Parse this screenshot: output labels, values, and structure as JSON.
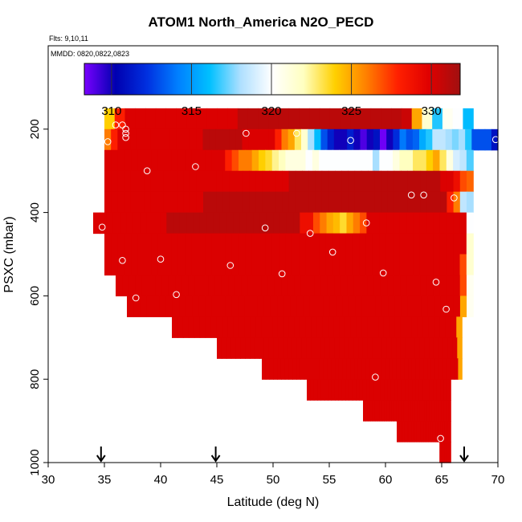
{
  "chart_data": {
    "type": "heatmap",
    "title": "ATOM1 North_America N2O_PECD",
    "annotations": [
      "Flts: 9,10,11",
      "MMDD: 0820,0822,0823"
    ],
    "xlabel": "Latitude (deg N)",
    "ylabel": "PSXC (mbar)",
    "xlim": [
      30,
      70
    ],
    "ylim": [
      1000,
      0
    ],
    "x_ticks": [
      "30",
      "35",
      "40",
      "45",
      "50",
      "55",
      "60",
      "65",
      "70"
    ],
    "y_ticks": [
      "200",
      "400",
      "600",
      "800",
      "1000"
    ],
    "colorbar": {
      "range": [
        308.3,
        331.8
      ],
      "ticks": [
        "310",
        "315",
        "320",
        "325",
        "330"
      ],
      "stops": [
        "#7a00ff",
        "#0000b0",
        "#0030e0",
        "#0080ff",
        "#00c0ff",
        "#b0e0ff",
        "#ffffff",
        "#ffffc0",
        "#ffd000",
        "#ff8000",
        "#ff2000",
        "#e00000",
        "#a01010"
      ]
    },
    "cell_lat_width": 1,
    "cell_pressure_height": 50,
    "rows": [
      {
        "p": 175,
        "lat_start": 35,
        "values": [
          324,
          328,
          330,
          330,
          330,
          330,
          330,
          330,
          330,
          330,
          330,
          330,
          330,
          331,
          331,
          331,
          331,
          331,
          331,
          331,
          331,
          331,
          331,
          331,
          331,
          331,
          331,
          331,
          331,
          330.5,
          325,
          321.5,
          316.5,
          320.5,
          320,
          316
        ]
      },
      {
        "p": 225,
        "lat_start": 35,
        "values": [
          326,
          328,
          330,
          330,
          330,
          330,
          330,
          330,
          330,
          330,
          330,
          330,
          330,
          330,
          330,
          331,
          331,
          331,
          331,
          331,
          331,
          330,
          330,
          330,
          330,
          330,
          328,
          326,
          325,
          323,
          321.5,
          318,
          316,
          313,
          311.5,
          310,
          310,
          311.5,
          310,
          309,
          310,
          311,
          308.5,
          310,
          312,
          314,
          313,
          313.5,
          315.5,
          316.5,
          318.5,
          318.5,
          318,
          317.5,
          318,
          316.5,
          313,
          313,
          313,
          311
        ]
      },
      {
        "p": 275,
        "lat_start": 35,
        "values": [
          330,
          330,
          330,
          330,
          330,
          330,
          330,
          330,
          330,
          330,
          330,
          330,
          330,
          330,
          330,
          330,
          330,
          330,
          328,
          327,
          326,
          326,
          325,
          324,
          323.5,
          322.5,
          322,
          321,
          321,
          321,
          320,
          321,
          320,
          320,
          320,
          320,
          320,
          320,
          320,
          320,
          318,
          320,
          320,
          321,
          322,
          322,
          323,
          323,
          324,
          325,
          323,
          321,
          319,
          318.5,
          317
        ]
      },
      {
        "p": 325,
        "lat_start": 35,
        "values": [
          330,
          330,
          330,
          330,
          330,
          330,
          330,
          330,
          330,
          330,
          330,
          330,
          330,
          330,
          330,
          330,
          330,
          330,
          330,
          330,
          330,
          330,
          330,
          330,
          330,
          330,
          330,
          330,
          331,
          331,
          331,
          331,
          331,
          331,
          331,
          331,
          331,
          331,
          331,
          331,
          331,
          331,
          331,
          331,
          331,
          331,
          331,
          331,
          331,
          331,
          331,
          330,
          330,
          329,
          327,
          326.5
        ]
      },
      {
        "p": 375,
        "lat_start": 35,
        "values": [
          330,
          330,
          330,
          330,
          330,
          330,
          330,
          330,
          330,
          330,
          330,
          330,
          330,
          330,
          330,
          331,
          331,
          331,
          331,
          331,
          331,
          331,
          331,
          331,
          331,
          331,
          331,
          331,
          331,
          331,
          331,
          331,
          331,
          331,
          331,
          331,
          331,
          331,
          331,
          331,
          331,
          331,
          331,
          331,
          331,
          331,
          331,
          331,
          331,
          331,
          331,
          331,
          328,
          326,
          318.5,
          318
        ]
      },
      {
        "p": 425,
        "lat_start": 34,
        "values": [
          330,
          330,
          330,
          330,
          330,
          330,
          330,
          330,
          330,
          330,
          330,
          331,
          331,
          331,
          331,
          331,
          331,
          331,
          331,
          331,
          331,
          331,
          331,
          331,
          331,
          331,
          331,
          331,
          331,
          331,
          331,
          329,
          329,
          327,
          326,
          325,
          324.5,
          323.5,
          325,
          326,
          327,
          330,
          330,
          330,
          330,
          330,
          330,
          330,
          330,
          330,
          330,
          330,
          330,
          330,
          330,
          330,
          320
        ]
      },
      {
        "p": 475,
        "lat_start": 35,
        "values": [
          330,
          330,
          330,
          330,
          330,
          330,
          330,
          330,
          330,
          330,
          330,
          330,
          330,
          330,
          330,
          330,
          330,
          330,
          330,
          330,
          330,
          330,
          330,
          330,
          330,
          330,
          330,
          330,
          330,
          330,
          330,
          330,
          330,
          330,
          330,
          330,
          330,
          330,
          330,
          330,
          330,
          330,
          330,
          330,
          330,
          330,
          330,
          330,
          330,
          330,
          330,
          330,
          330,
          330,
          321.5
        ]
      },
      {
        "p": 525,
        "lat_start": 35,
        "values": [
          330,
          330,
          330,
          330,
          330,
          330,
          330,
          330,
          330,
          330,
          330,
          330,
          330,
          330,
          330,
          330,
          330,
          330,
          330,
          330,
          330,
          330,
          330,
          330,
          330,
          330,
          330,
          330,
          330,
          330,
          330,
          330,
          330,
          330,
          330,
          330,
          330,
          330,
          330,
          330,
          330,
          330,
          330,
          330,
          330,
          330,
          330,
          330,
          330,
          330,
          330,
          330,
          330,
          327,
          321.5
        ]
      },
      {
        "p": 575,
        "lat_start": 36,
        "values": [
          330,
          330,
          330,
          330,
          330,
          330,
          330,
          330,
          330,
          330,
          330,
          330,
          330,
          330,
          330,
          330,
          330,
          330,
          330,
          330,
          330,
          330,
          330,
          330,
          330,
          330,
          330,
          330,
          330,
          330,
          330,
          330,
          330,
          330,
          330,
          330,
          330,
          330,
          330,
          330,
          330,
          330,
          330,
          330,
          330,
          330,
          330,
          330,
          330,
          330,
          330,
          330,
          327,
          320.5
        ]
      },
      {
        "p": 625,
        "lat_start": 37,
        "values": [
          330,
          330,
          330,
          330,
          330,
          330,
          330,
          330,
          330,
          330,
          330,
          330,
          330,
          330,
          330,
          330,
          330,
          330,
          330,
          330,
          330,
          330,
          330,
          330,
          330,
          330,
          330,
          330,
          330,
          330,
          330,
          330,
          330,
          330,
          330,
          330,
          330,
          330,
          330,
          330,
          330,
          330,
          330,
          330,
          330,
          330,
          330,
          330,
          330,
          330,
          330,
          325,
          320.5
        ]
      },
      {
        "p": 675,
        "lat_start": 41,
        "values": [
          330,
          330,
          330,
          330,
          330,
          330,
          330,
          330,
          330,
          330,
          330,
          330,
          330,
          330,
          330,
          330,
          330,
          330,
          330,
          330,
          330,
          330,
          330,
          330,
          330,
          330,
          330,
          330,
          330,
          330,
          330,
          330,
          330,
          330,
          330,
          330,
          330,
          330,
          330,
          330,
          330,
          330,
          330,
          330,
          330,
          330,
          330,
          330,
          330,
          330,
          330,
          325
        ]
      },
      {
        "p": 725,
        "lat_start": 45,
        "values": [
          330,
          330,
          330,
          330,
          330,
          330,
          330,
          330,
          330,
          330,
          330,
          330,
          330,
          330,
          330,
          330,
          330,
          330,
          330,
          330,
          330,
          330,
          330,
          330,
          330,
          330,
          330,
          330,
          330,
          330,
          330,
          330,
          330,
          330,
          330,
          330,
          330,
          330,
          330,
          330,
          330,
          330,
          330,
          330,
          330,
          330,
          330,
          330,
          330,
          330,
          330,
          325
        ]
      },
      {
        "p": 775,
        "lat_start": 49,
        "values": [
          330,
          330,
          330,
          330,
          330,
          330,
          330,
          330,
          330,
          330,
          330,
          330,
          330,
          330,
          330,
          330,
          330,
          330,
          330,
          330,
          330,
          330,
          330,
          330,
          330,
          330,
          330,
          330,
          330,
          330,
          330,
          330,
          330,
          330,
          330,
          330,
          330,
          330,
          330,
          330,
          330,
          330,
          330,
          330,
          330,
          330,
          330,
          330,
          330,
          330,
          330,
          325
        ]
      },
      {
        "p": 825,
        "lat_start": 53,
        "values": [
          330,
          330,
          330,
          330,
          330,
          330,
          330,
          330,
          330,
          330,
          330,
          330,
          330,
          330,
          330,
          330,
          330,
          330,
          330,
          330,
          330,
          330,
          330,
          330,
          330,
          330,
          330,
          330,
          330,
          330,
          330,
          330,
          330,
          330,
          330,
          330,
          330,
          330,
          330,
          330,
          330
        ]
      },
      {
        "p": 875,
        "lat_start": 58,
        "values": [
          330,
          330,
          330,
          330,
          330,
          330,
          330,
          330,
          330,
          330,
          330,
          330,
          330,
          330,
          330,
          330,
          330,
          330,
          330,
          330,
          330,
          330,
          330,
          330,
          330,
          330,
          330,
          330,
          330,
          330,
          330,
          330,
          330,
          330,
          330,
          330,
          330
        ]
      },
      {
        "p": 925,
        "lat_start": 61,
        "values": [
          330,
          330,
          330,
          330,
          330,
          330,
          330,
          330,
          330,
          330,
          330,
          330,
          330,
          330,
          330,
          330,
          330,
          330,
          330,
          330,
          330,
          330,
          330,
          330,
          330,
          330,
          330,
          330,
          330,
          330,
          330,
          330,
          330,
          330,
          330,
          330
        ]
      },
      {
        "p": 975,
        "lat_start": 64.8,
        "values": [
          330,
          330,
          330,
          330,
          330,
          330,
          330,
          330,
          330,
          330,
          330,
          330,
          330,
          330,
          330,
          330,
          330,
          330,
          330,
          330,
          330,
          330,
          330,
          330,
          330,
          330,
          330,
          330,
          330,
          330,
          330,
          330,
          330,
          330,
          330,
          330
        ]
      }
    ],
    "row_extents": [
      {
        "p": 175,
        "lat_end": 67.8
      },
      {
        "p": 225,
        "lat_end": 70
      },
      {
        "p": 275,
        "lat_end": 67.8
      },
      {
        "p": 325,
        "lat_end": 67.8
      },
      {
        "p": 375,
        "lat_end": 67.8
      },
      {
        "p": 425,
        "lat_end": 67.8
      },
      {
        "p": 475,
        "lat_end": 67.8
      },
      {
        "p": 525,
        "lat_end": 67.8
      },
      {
        "p": 575,
        "lat_end": 67.8
      },
      {
        "p": 625,
        "lat_end": 67.8
      },
      {
        "p": 675,
        "lat_end": 66.8
      },
      {
        "p": 725,
        "lat_end": 66.8
      },
      {
        "p": 775,
        "lat_end": 66.8
      },
      {
        "p": 825,
        "lat_end": 65.8
      },
      {
        "p": 875,
        "lat_end": 65.8
      },
      {
        "p": 925,
        "lat_end": 65.8
      },
      {
        "p": 975,
        "lat_end": 65.8
      }
    ],
    "points": [
      [
        35.3,
        230
      ],
      [
        36,
        190
      ],
      [
        36.6,
        190
      ],
      [
        36.9,
        200
      ],
      [
        36.9,
        210
      ],
      [
        36.9,
        220
      ],
      [
        38.8,
        300
      ],
      [
        43.1,
        290
      ],
      [
        47.6,
        210
      ],
      [
        52.1,
        210
      ],
      [
        34.8,
        435
      ],
      [
        36.6,
        515
      ],
      [
        40,
        512
      ],
      [
        37.8,
        605
      ],
      [
        41.4,
        597
      ],
      [
        46.2,
        527
      ],
      [
        49.3,
        437
      ],
      [
        50.8,
        547
      ],
      [
        53.3,
        450
      ],
      [
        55.3,
        495
      ],
      [
        56.9,
        227
      ],
      [
        58.3,
        425
      ],
      [
        59.8,
        545
      ],
      [
        62.3,
        358
      ],
      [
        63.4,
        358
      ],
      [
        64.5,
        567
      ],
      [
        65.4,
        632
      ],
      [
        66.1,
        365
      ],
      [
        59.1,
        795
      ],
      [
        64.9,
        942
      ],
      [
        69.8,
        225
      ]
    ],
    "flight_markers": [
      34.7,
      44.9,
      67
    ]
  }
}
